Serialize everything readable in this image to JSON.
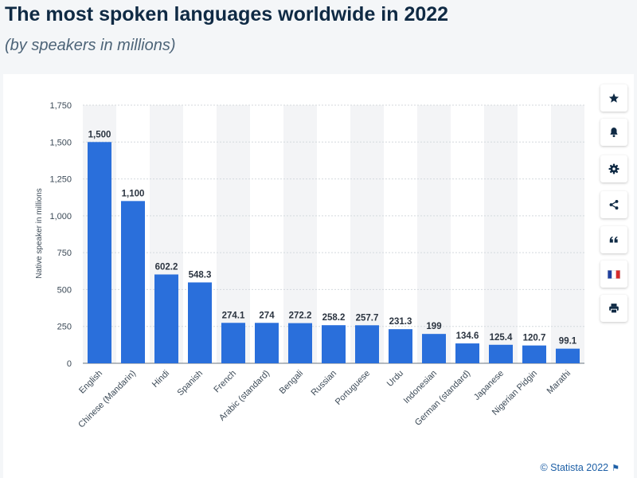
{
  "chart_data": {
    "type": "bar",
    "title": "The most spoken languages worldwide in 2022",
    "subtitle": "(by speakers in millions)",
    "xlabel": "",
    "ylabel": "Native speaker in millions",
    "ylim": [
      0,
      1750
    ],
    "yticks": [
      0,
      250,
      500,
      750,
      1000,
      1250,
      1500,
      1750
    ],
    "ytick_labels": [
      "0",
      "250",
      "500",
      "750",
      "1,000",
      "1,250",
      "1,500",
      "1,750"
    ],
    "grid": true,
    "bar_color": "#2a6fdb",
    "categories": [
      "English",
      "Chinese (Mandarin)",
      "Hindi",
      "Spanish",
      "French",
      "Arabic (standard)",
      "Bengali",
      "Russian",
      "Portuguese",
      "Urdu",
      "Indonesian",
      "German (standard)",
      "Japanese",
      "Nigerian Pidgin",
      "Marathi"
    ],
    "values": [
      1500,
      1100,
      602.2,
      548.3,
      274.1,
      274,
      272.2,
      258.2,
      257.7,
      231.3,
      199,
      134.6,
      125.4,
      120.7,
      99.1
    ],
    "value_labels": [
      "1,500",
      "1,100",
      "602.2",
      "548.3",
      "274.1",
      "274",
      "272.2",
      "258.2",
      "257.7",
      "231.3",
      "199",
      "134.6",
      "125.4",
      "120.7",
      "99.1"
    ]
  },
  "toolbar": {
    "buttons": [
      {
        "name": "favorite-button",
        "icon": "star-icon"
      },
      {
        "name": "notification-button",
        "icon": "bell-icon"
      },
      {
        "name": "settings-button",
        "icon": "gear-icon"
      },
      {
        "name": "share-button",
        "icon": "share-icon"
      },
      {
        "name": "cite-button",
        "icon": "quote-icon"
      },
      {
        "name": "language-button",
        "icon": "french-flag-icon"
      },
      {
        "name": "print-button",
        "icon": "print-icon"
      }
    ]
  },
  "footer": {
    "credit": "© Statista 2022",
    "flag_icon": "flag-icon"
  },
  "colors": {
    "title": "#0f2a44",
    "subtitle": "#4d6478",
    "axis_text": "#3c4a57",
    "grid": "#d4d9de",
    "column_band": "#f3f4f6",
    "credit": "#1d5fa6",
    "toolbar_icon": "#0f2a44"
  }
}
